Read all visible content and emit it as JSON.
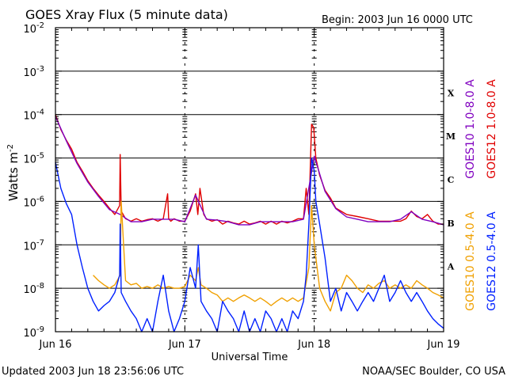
{
  "chart_data": {
    "type": "line",
    "title": "GOES Xray Flux (5 minute data)",
    "begin_label": "Begin:  2003 Jun 16 0000 UTC",
    "xlabel": "Universal Time",
    "ylabel": "Watts m",
    "ylabel_sup": "-2",
    "y_scale": "log",
    "ylim": [
      1e-09,
      0.01
    ],
    "xlim": [
      0,
      72
    ],
    "x_ticks": [
      {
        "hour": 0,
        "label": "Jun 16"
      },
      {
        "hour": 24,
        "label": "Jun 17"
      },
      {
        "hour": 48,
        "label": "Jun 18"
      },
      {
        "hour": 72,
        "label": "Jun 19"
      }
    ],
    "y_ticks": [
      {
        "exp": -2,
        "label": "10",
        "sup": "-2"
      },
      {
        "exp": -3,
        "label": "10",
        "sup": "-3"
      },
      {
        "exp": -4,
        "label": "10",
        "sup": "-4"
      },
      {
        "exp": -5,
        "label": "10",
        "sup": "-5"
      },
      {
        "exp": -6,
        "label": "10",
        "sup": "-6"
      },
      {
        "exp": -7,
        "label": "10",
        "sup": "-7"
      },
      {
        "exp": -8,
        "label": "10",
        "sup": "-8"
      },
      {
        "exp": -9,
        "label": "10",
        "sup": "-9"
      }
    ],
    "flare_classes": [
      {
        "label": "X",
        "exp": -3.5
      },
      {
        "label": "M",
        "exp": -4.5
      },
      {
        "label": "C",
        "exp": -5.5
      },
      {
        "label": "B",
        "exp": -6.5
      },
      {
        "label": "A",
        "exp": -7.5
      }
    ],
    "legend": [
      {
        "label": "GOES10 1.0-8.0 A",
        "color": "#8000c0"
      },
      {
        "label": "GOES12 1.0-8.0 A",
        "color": "#e00000"
      },
      {
        "label": "GOES10 0.5-4.0 A",
        "color": "#f0a000"
      },
      {
        "label": "GOES12 0.5-4.0 A",
        "color": "#0020ff"
      }
    ],
    "series": [
      {
        "name": "GOES12 1.0-8.0 A",
        "color": "#e00000",
        "x": [
          0,
          1,
          2,
          3,
          4,
          5,
          6,
          7,
          8,
          9,
          10,
          11,
          11.9,
          12.0,
          12.2,
          13,
          14,
          15,
          16,
          17,
          18,
          19,
          20,
          20.8,
          21.0,
          21.4,
          22,
          23,
          24,
          25,
          26,
          26.4,
          26.8,
          27.5,
          28,
          29,
          30,
          31,
          32,
          33,
          34,
          35,
          36,
          37,
          38,
          39,
          40,
          41,
          42,
          43,
          44,
          45,
          46,
          46.5,
          47.0,
          47.5,
          47.9,
          48.3,
          49,
          50,
          51,
          52,
          54,
          56,
          58,
          60,
          62,
          64,
          65,
          66,
          67,
          68,
          69,
          70,
          71,
          72
        ],
        "values": [
          0.0001,
          4.5e-05,
          2.6e-05,
          1.6e-05,
          8e-06,
          5e-06,
          3e-06,
          2e-06,
          1.4e-06,
          1e-06,
          7e-07,
          5e-07,
          8e-07,
          1.2e-05,
          6e-07,
          4e-07,
          3.5e-07,
          4e-07,
          3.5e-07,
          3.8e-07,
          4e-07,
          3.5e-07,
          4e-07,
          1.5e-06,
          4e-07,
          3.5e-07,
          4e-07,
          3.5e-07,
          3.5e-07,
          6e-07,
          1.5e-06,
          5e-07,
          2e-06,
          5e-07,
          4e-07,
          3.5e-07,
          3.8e-07,
          3e-07,
          3.5e-07,
          3.2e-07,
          3e-07,
          3.5e-07,
          3e-07,
          3.2e-07,
          3.5e-07,
          3e-07,
          3.5e-07,
          3e-07,
          3.5e-07,
          3.2e-07,
          3.5e-07,
          4e-07,
          4e-07,
          2e-06,
          5e-07,
          6e-05,
          5e-05,
          1e-05,
          4e-06,
          1.8e-06,
          1.2e-06,
          7e-07,
          5e-07,
          4.5e-07,
          4e-07,
          3.5e-07,
          3.5e-07,
          3.5e-07,
          4e-07,
          6e-07,
          4.5e-07,
          4e-07,
          5e-07,
          3.5e-07,
          3e-07,
          3e-07
        ]
      },
      {
        "name": "GOES10 1.0-8.0 A",
        "color": "#8000c0",
        "x": [
          0,
          2,
          4,
          6,
          8,
          10,
          12,
          14,
          16,
          18,
          20,
          22,
          24,
          26,
          28,
          30,
          32,
          34,
          36,
          38,
          40,
          42,
          44,
          46,
          48,
          50,
          52,
          54,
          56,
          58,
          60,
          62,
          64,
          66,
          68,
          70,
          72
        ],
        "values": [
          9e-05,
          2.5e-05,
          7.5e-06,
          2.8e-06,
          1.3e-06,
          6.5e-07,
          5e-07,
          3.4e-07,
          3.4e-07,
          3.9e-07,
          3.9e-07,
          3.9e-07,
          3.4e-07,
          1.4e-06,
          3.9e-07,
          3.7e-07,
          3.4e-07,
          2.9e-07,
          2.9e-07,
          3.4e-07,
          3.4e-07,
          3.4e-07,
          3.4e-07,
          3.9e-07,
          1.1e-05,
          1.7e-06,
          6.8e-07,
          4.4e-07,
          3.9e-07,
          3.4e-07,
          3.4e-07,
          3.4e-07,
          3.9e-07,
          5.8e-07,
          3.9e-07,
          3.4e-07,
          2.9e-07
        ]
      },
      {
        "name": "GOES10 0.5-4.0 A",
        "color": "#f0a000",
        "x": [
          7,
          8,
          9,
          10,
          11,
          12,
          12.2,
          13,
          14,
          15,
          16,
          17,
          18,
          19,
          20,
          21,
          22,
          23,
          24,
          25,
          26,
          26.5,
          27,
          28,
          29,
          30,
          31,
          32,
          33,
          34,
          35,
          36,
          37,
          38,
          39,
          40,
          41,
          42,
          43,
          44,
          45,
          46,
          47,
          47.5,
          48,
          49,
          50,
          51,
          52,
          53,
          54,
          55,
          56,
          57,
          58,
          59,
          60,
          61,
          62,
          63,
          64,
          65,
          66,
          67,
          68,
          69,
          70,
          71,
          72
        ],
        "values": [
          2e-08,
          1.5e-08,
          1.2e-08,
          1e-08,
          1.2e-08,
          2e-08,
          1e-06,
          1.5e-08,
          1.2e-08,
          1.3e-08,
          1e-08,
          1.1e-08,
          1e-08,
          1.2e-08,
          1e-08,
          1.1e-08,
          1e-08,
          1e-08,
          1.1e-08,
          2e-08,
          1.5e-08,
          3e-08,
          1.2e-08,
          1e-08,
          8e-09,
          7e-09,
          5e-09,
          6e-09,
          5e-09,
          6e-09,
          7e-09,
          6e-09,
          5e-09,
          6e-09,
          5e-09,
          4e-09,
          5e-09,
          6e-09,
          5e-09,
          6e-09,
          5e-09,
          6e-09,
          3e-08,
          8e-07,
          1e-07,
          1e-08,
          5e-09,
          3e-09,
          8e-09,
          1e-08,
          2e-08,
          1.5e-08,
          1e-08,
          8e-09,
          1.2e-08,
          1e-08,
          1.3e-08,
          1.5e-08,
          1e-08,
          1.2e-08,
          1e-08,
          1.2e-08,
          1e-08,
          1.5e-08,
          1.2e-08,
          1e-08,
          8e-09,
          7e-09,
          6e-09
        ]
      },
      {
        "name": "GOES12 0.5-4.0 A",
        "color": "#0020ff",
        "x": [
          0,
          1,
          2,
          3,
          4,
          5,
          6,
          7,
          8,
          9,
          10,
          11,
          11.9,
          12.0,
          12.2,
          13,
          14,
          15,
          16,
          17,
          18,
          19,
          20,
          21,
          22,
          23,
          24,
          25,
          26,
          26.5,
          27,
          28,
          29,
          30,
          31,
          32,
          33,
          34,
          35,
          36,
          37,
          38,
          39,
          40,
          41,
          42,
          43,
          44,
          45,
          46,
          46.5,
          47.0,
          47.5,
          48.0,
          48.3,
          49,
          50,
          51,
          52,
          53,
          54,
          55,
          56,
          57,
          58,
          59,
          60,
          61,
          62,
          63,
          64,
          65,
          66,
          67,
          68,
          69,
          70,
          71,
          72
        ],
        "values": [
          8e-06,
          2e-06,
          9e-07,
          5e-07,
          1e-07,
          3e-08,
          1e-08,
          5e-09,
          3e-09,
          4e-09,
          5e-09,
          8e-09,
          2e-08,
          3e-07,
          8e-09,
          5e-09,
          3e-09,
          2e-09,
          1e-09,
          2e-09,
          1e-09,
          5e-09,
          2e-08,
          3e-09,
          1e-09,
          2e-09,
          5e-09,
          3e-08,
          1e-08,
          1e-07,
          5e-09,
          3e-09,
          2e-09,
          1e-09,
          5e-09,
          3e-09,
          2e-09,
          1e-09,
          3e-09,
          1e-09,
          2e-09,
          1e-09,
          3e-09,
          2e-09,
          1e-09,
          2e-09,
          1e-09,
          3e-09,
          2e-09,
          5e-09,
          2e-08,
          3e-07,
          1e-05,
          5e-06,
          1e-06,
          3e-07,
          5e-08,
          5e-09,
          1e-08,
          3e-09,
          8e-09,
          5e-09,
          3e-09,
          5e-09,
          8e-09,
          5e-09,
          1e-08,
          2e-08,
          5e-09,
          8e-09,
          1.5e-08,
          8e-09,
          5e-09,
          8e-09,
          5e-09,
          3e-09,
          2e-09,
          1.5e-09,
          1.2e-09
        ]
      }
    ]
  },
  "footer": {
    "updated": "Updated 2003 Jun 18 23:56:06 UTC",
    "credit": "NOAA/SEC Boulder, CO USA"
  },
  "colors": {
    "background": "#ffffff",
    "axes": "#000000"
  }
}
